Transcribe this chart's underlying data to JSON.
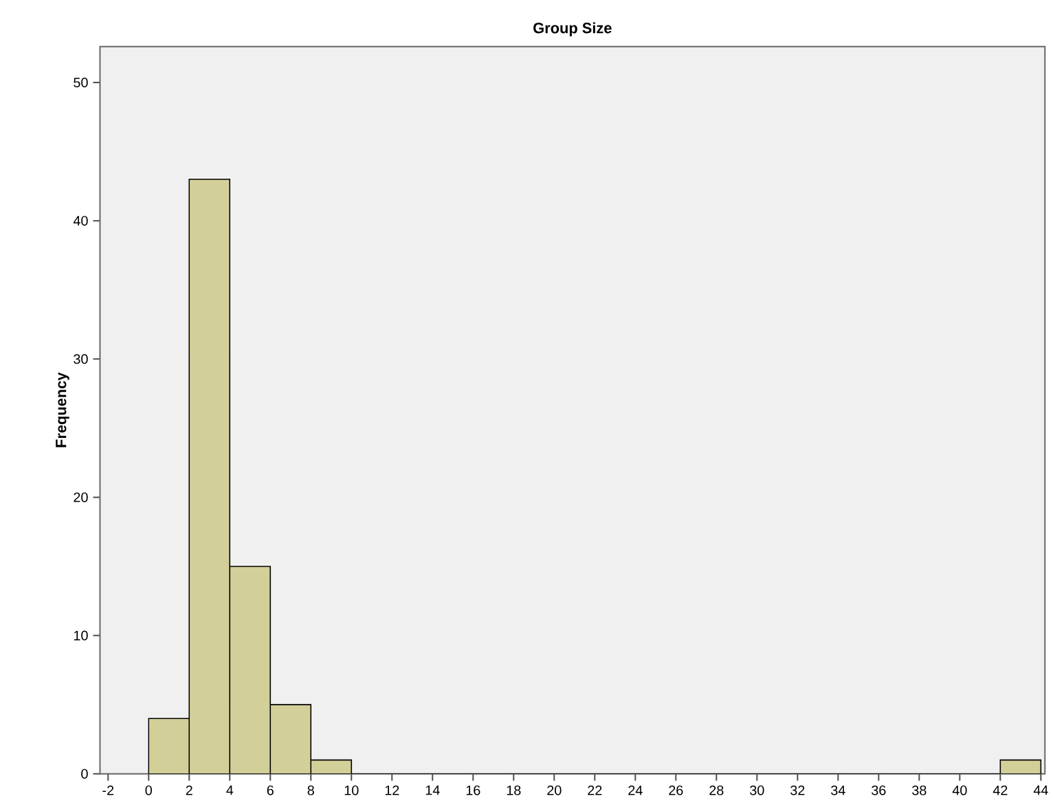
{
  "chart_data": {
    "type": "histogram",
    "title": "Group Size",
    "ylabel": "Frequency",
    "bins": [
      0,
      2,
      4,
      6,
      8,
      10,
      12,
      14,
      16,
      18,
      20,
      22,
      24,
      26,
      28,
      30,
      32,
      34,
      36,
      38,
      40,
      42,
      44
    ],
    "values": [
      4,
      43,
      15,
      5,
      1,
      0,
      0,
      0,
      0,
      0,
      0,
      0,
      0,
      0,
      0,
      0,
      0,
      0,
      0,
      0,
      0,
      1
    ],
    "color": "#d3cf99",
    "xlim": [
      -2.4,
      44.2
    ],
    "xticks": [
      -2,
      0,
      2,
      4,
      6,
      8,
      10,
      12,
      14,
      16,
      18,
      20,
      22,
      24,
      26,
      28,
      30,
      32,
      34,
      36,
      38,
      40,
      42,
      44
    ],
    "ylim": [
      0,
      52.6
    ],
    "yticks": [
      0,
      10,
      20,
      30,
      40,
      50
    ],
    "grid": false
  }
}
